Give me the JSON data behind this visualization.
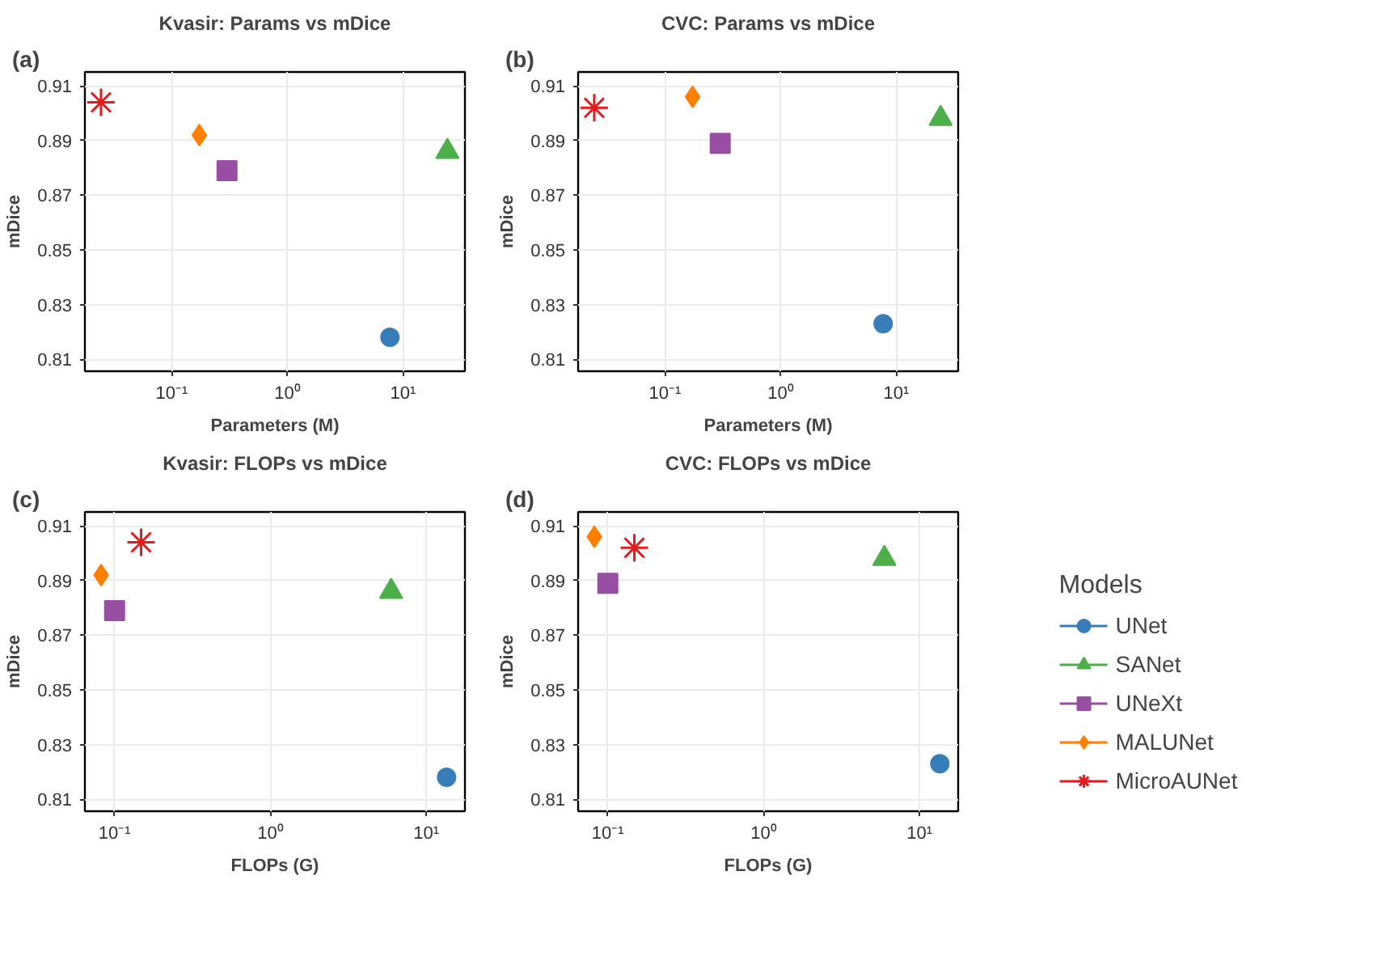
{
  "chart_data": [
    {
      "type": "scatter",
      "title": "Kvasir: Params vs mDice",
      "xlabel": "Parameters (M)",
      "ylabel": "mDice",
      "annotations": [
        "(a)"
      ],
      "log": "x",
      "grid": true,
      "xlim": [
        0.0177,
        34.3
      ],
      "xticks": [
        {
          "value": 0.1,
          "label": "10⁻¹"
        },
        {
          "value": 1,
          "label": "10⁰"
        },
        {
          "value": 10,
          "label": "10¹"
        }
      ],
      "ylim": [
        0.8056,
        0.9151
      ],
      "yticks": [
        0.81,
        0.83,
        0.85,
        0.87,
        0.89,
        0.91
      ],
      "series": [
        {
          "color": "#377eb8",
          "marker": "circle",
          "x": [
            7.7
          ],
          "values": [
            0.818
          ]
        },
        {
          "color": "#4daf4a",
          "marker": "triangle",
          "x": [
            24.2
          ],
          "values": [
            0.886
          ]
        },
        {
          "color": "#984ea3",
          "marker": "square",
          "x": [
            0.3
          ],
          "values": [
            0.879
          ]
        },
        {
          "color": "#ff7f00",
          "marker": "diamond",
          "x": [
            0.173
          ],
          "values": [
            0.892
          ]
        },
        {
          "color": "#e41a1c",
          "marker": "cross",
          "x": [
            0.0244
          ],
          "values": [
            0.904
          ]
        }
      ]
    },
    {
      "type": "scatter",
      "title": "CVC: Params vs mDice",
      "xlabel": "Parameters (M)",
      "ylabel": "mDice",
      "annotations": [
        "(b)"
      ],
      "log": "x",
      "grid": true,
      "xlim": [
        0.0177,
        34.3
      ],
      "xticks": [
        {
          "value": 0.1,
          "label": "10⁻¹"
        },
        {
          "value": 1,
          "label": "10⁰"
        },
        {
          "value": 10,
          "label": "10¹"
        }
      ],
      "ylim": [
        0.8056,
        0.9151
      ],
      "yticks": [
        0.81,
        0.83,
        0.85,
        0.87,
        0.89,
        0.91
      ],
      "series": [
        {
          "color": "#377eb8",
          "marker": "circle",
          "x": [
            7.7
          ],
          "values": [
            0.823
          ]
        },
        {
          "color": "#4daf4a",
          "marker": "triangle",
          "x": [
            24.2
          ],
          "values": [
            0.898
          ]
        },
        {
          "color": "#984ea3",
          "marker": "square",
          "x": [
            0.3
          ],
          "values": [
            0.889
          ]
        },
        {
          "color": "#ff7f00",
          "marker": "diamond",
          "x": [
            0.173
          ],
          "values": [
            0.906
          ]
        },
        {
          "color": "#e41a1c",
          "marker": "cross",
          "x": [
            0.0244
          ],
          "values": [
            0.902
          ]
        }
      ]
    },
    {
      "type": "scatter",
      "title": "Kvasir: FLOPs vs mDice",
      "xlabel": "FLOPs (G)",
      "ylabel": "mDice",
      "annotations": [
        "(c)"
      ],
      "log": "x",
      "grid": true,
      "xlim": [
        0.0645,
        17.7
      ],
      "xticks": [
        {
          "value": 0.1,
          "label": "10⁻¹"
        },
        {
          "value": 1,
          "label": "10⁰"
        },
        {
          "value": 10,
          "label": "10¹"
        }
      ],
      "ylim": [
        0.8056,
        0.9151
      ],
      "yticks": [
        0.81,
        0.83,
        0.85,
        0.87,
        0.89,
        0.91
      ],
      "series": [
        {
          "color": "#377eb8",
          "marker": "circle",
          "x": [
            13.5
          ],
          "values": [
            0.818
          ]
        },
        {
          "color": "#4daf4a",
          "marker": "triangle",
          "x": [
            5.95
          ],
          "values": [
            0.886
          ]
        },
        {
          "color": "#984ea3",
          "marker": "square",
          "x": [
            0.1
          ],
          "values": [
            0.879
          ]
        },
        {
          "color": "#ff7f00",
          "marker": "diamond",
          "x": [
            0.082
          ],
          "values": [
            0.892
          ]
        },
        {
          "color": "#e41a1c",
          "marker": "cross",
          "x": [
            0.148
          ],
          "values": [
            0.904
          ]
        }
      ]
    },
    {
      "type": "scatter",
      "title": "CVC: FLOPs vs mDice",
      "xlabel": "FLOPs (G)",
      "ylabel": "mDice",
      "annotations": [
        "(d)"
      ],
      "log": "x",
      "grid": true,
      "xlim": [
        0.0645,
        17.7
      ],
      "xticks": [
        {
          "value": 0.1,
          "label": "10⁻¹"
        },
        {
          "value": 1,
          "label": "10⁰"
        },
        {
          "value": 10,
          "label": "10¹"
        }
      ],
      "ylim": [
        0.8056,
        0.9151
      ],
      "yticks": [
        0.81,
        0.83,
        0.85,
        0.87,
        0.89,
        0.91
      ],
      "legend": "right",
      "legend_title": "Models",
      "series": [
        {
          "name": "UNet",
          "color": "#377eb8",
          "marker": "circle",
          "x": [
            13.5
          ],
          "values": [
            0.823
          ]
        },
        {
          "name": "SANet",
          "color": "#4daf4a",
          "marker": "triangle",
          "x": [
            5.95
          ],
          "values": [
            0.898
          ]
        },
        {
          "name": "UNeXt",
          "color": "#984ea3",
          "marker": "square",
          "x": [
            0.1
          ],
          "values": [
            0.889
          ]
        },
        {
          "name": "MALUNet",
          "color": "#ff7f00",
          "marker": "diamond",
          "x": [
            0.082
          ],
          "values": [
            0.906
          ]
        },
        {
          "name": "MicroAUNet",
          "color": "#e41a1c",
          "marker": "cross",
          "x": [
            0.148
          ],
          "values": [
            0.902
          ]
        }
      ]
    }
  ]
}
